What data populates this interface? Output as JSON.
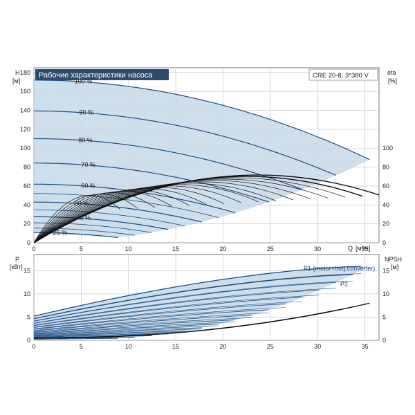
{
  "chart_data": [
    {
      "panel": "top",
      "type": "line",
      "title": "Рабочие характеристики насоса",
      "model_label": "CRE 20-8, 3*380 V",
      "left_axis": {
        "label": "H",
        "unit": "[м]",
        "ylim": [
          0,
          185
        ],
        "ticks": [
          0,
          20,
          40,
          60,
          80,
          100,
          120,
          140,
          160,
          180
        ]
      },
      "right_axis": {
        "label": "eta",
        "unit": "[%]",
        "ticks": [
          0,
          20,
          40,
          60,
          80,
          100
        ]
      },
      "x_axis": {
        "label": "Q",
        "unit": "[м³/ч]",
        "xlim": [
          0,
          36.5
        ],
        "ticks": [
          0,
          5,
          10,
          15,
          20,
          25,
          30,
          35
        ]
      },
      "speed_curves": [
        {
          "label": "100 %",
          "speed": 1.0
        },
        {
          "label": "90 %",
          "speed": 0.9
        },
        {
          "label": "80 %",
          "speed": 0.8
        },
        {
          "label": "70 %",
          "speed": 0.7
        },
        {
          "label": "60 %",
          "speed": 0.6
        },
        {
          "label": "50 %",
          "speed": 0.5
        },
        {
          "label": "40 %",
          "speed": 0.4
        },
        {
          "label": "25 %",
          "speed": 0.25
        }
      ],
      "head_at_100": {
        "H0": 172,
        "Qmax": 35.5,
        "Hend": 88
      },
      "eta_peak": 70,
      "grid": true
    },
    {
      "panel": "bottom",
      "type": "line",
      "left_axis": {
        "label": "P",
        "unit": "[кВт]",
        "ylim": [
          0,
          18.5
        ],
        "ticks": [
          0,
          5,
          10,
          15
        ]
      },
      "right_axis": {
        "label": "NPSH",
        "unit": "[м]",
        "ticks": [
          0,
          5,
          10,
          15
        ]
      },
      "x_axis": {
        "xlim": [
          0,
          36.5
        ],
        "ticks": [
          0,
          5,
          10,
          15,
          20,
          25,
          30,
          35
        ]
      },
      "series_labels": {
        "p1": "P1 (motor+freq.converter)",
        "p2": "P2"
      },
      "power_at_100": {
        "P_start": 5.2,
        "P_end": 16.0
      },
      "npsh_end": 8,
      "grid": true
    }
  ],
  "colors": {
    "curve": "#1c4f85",
    "band": "#c6d8e8",
    "eta": "#111111",
    "title_bg": "#2e4b6e",
    "grid": "#bdbdbd"
  }
}
